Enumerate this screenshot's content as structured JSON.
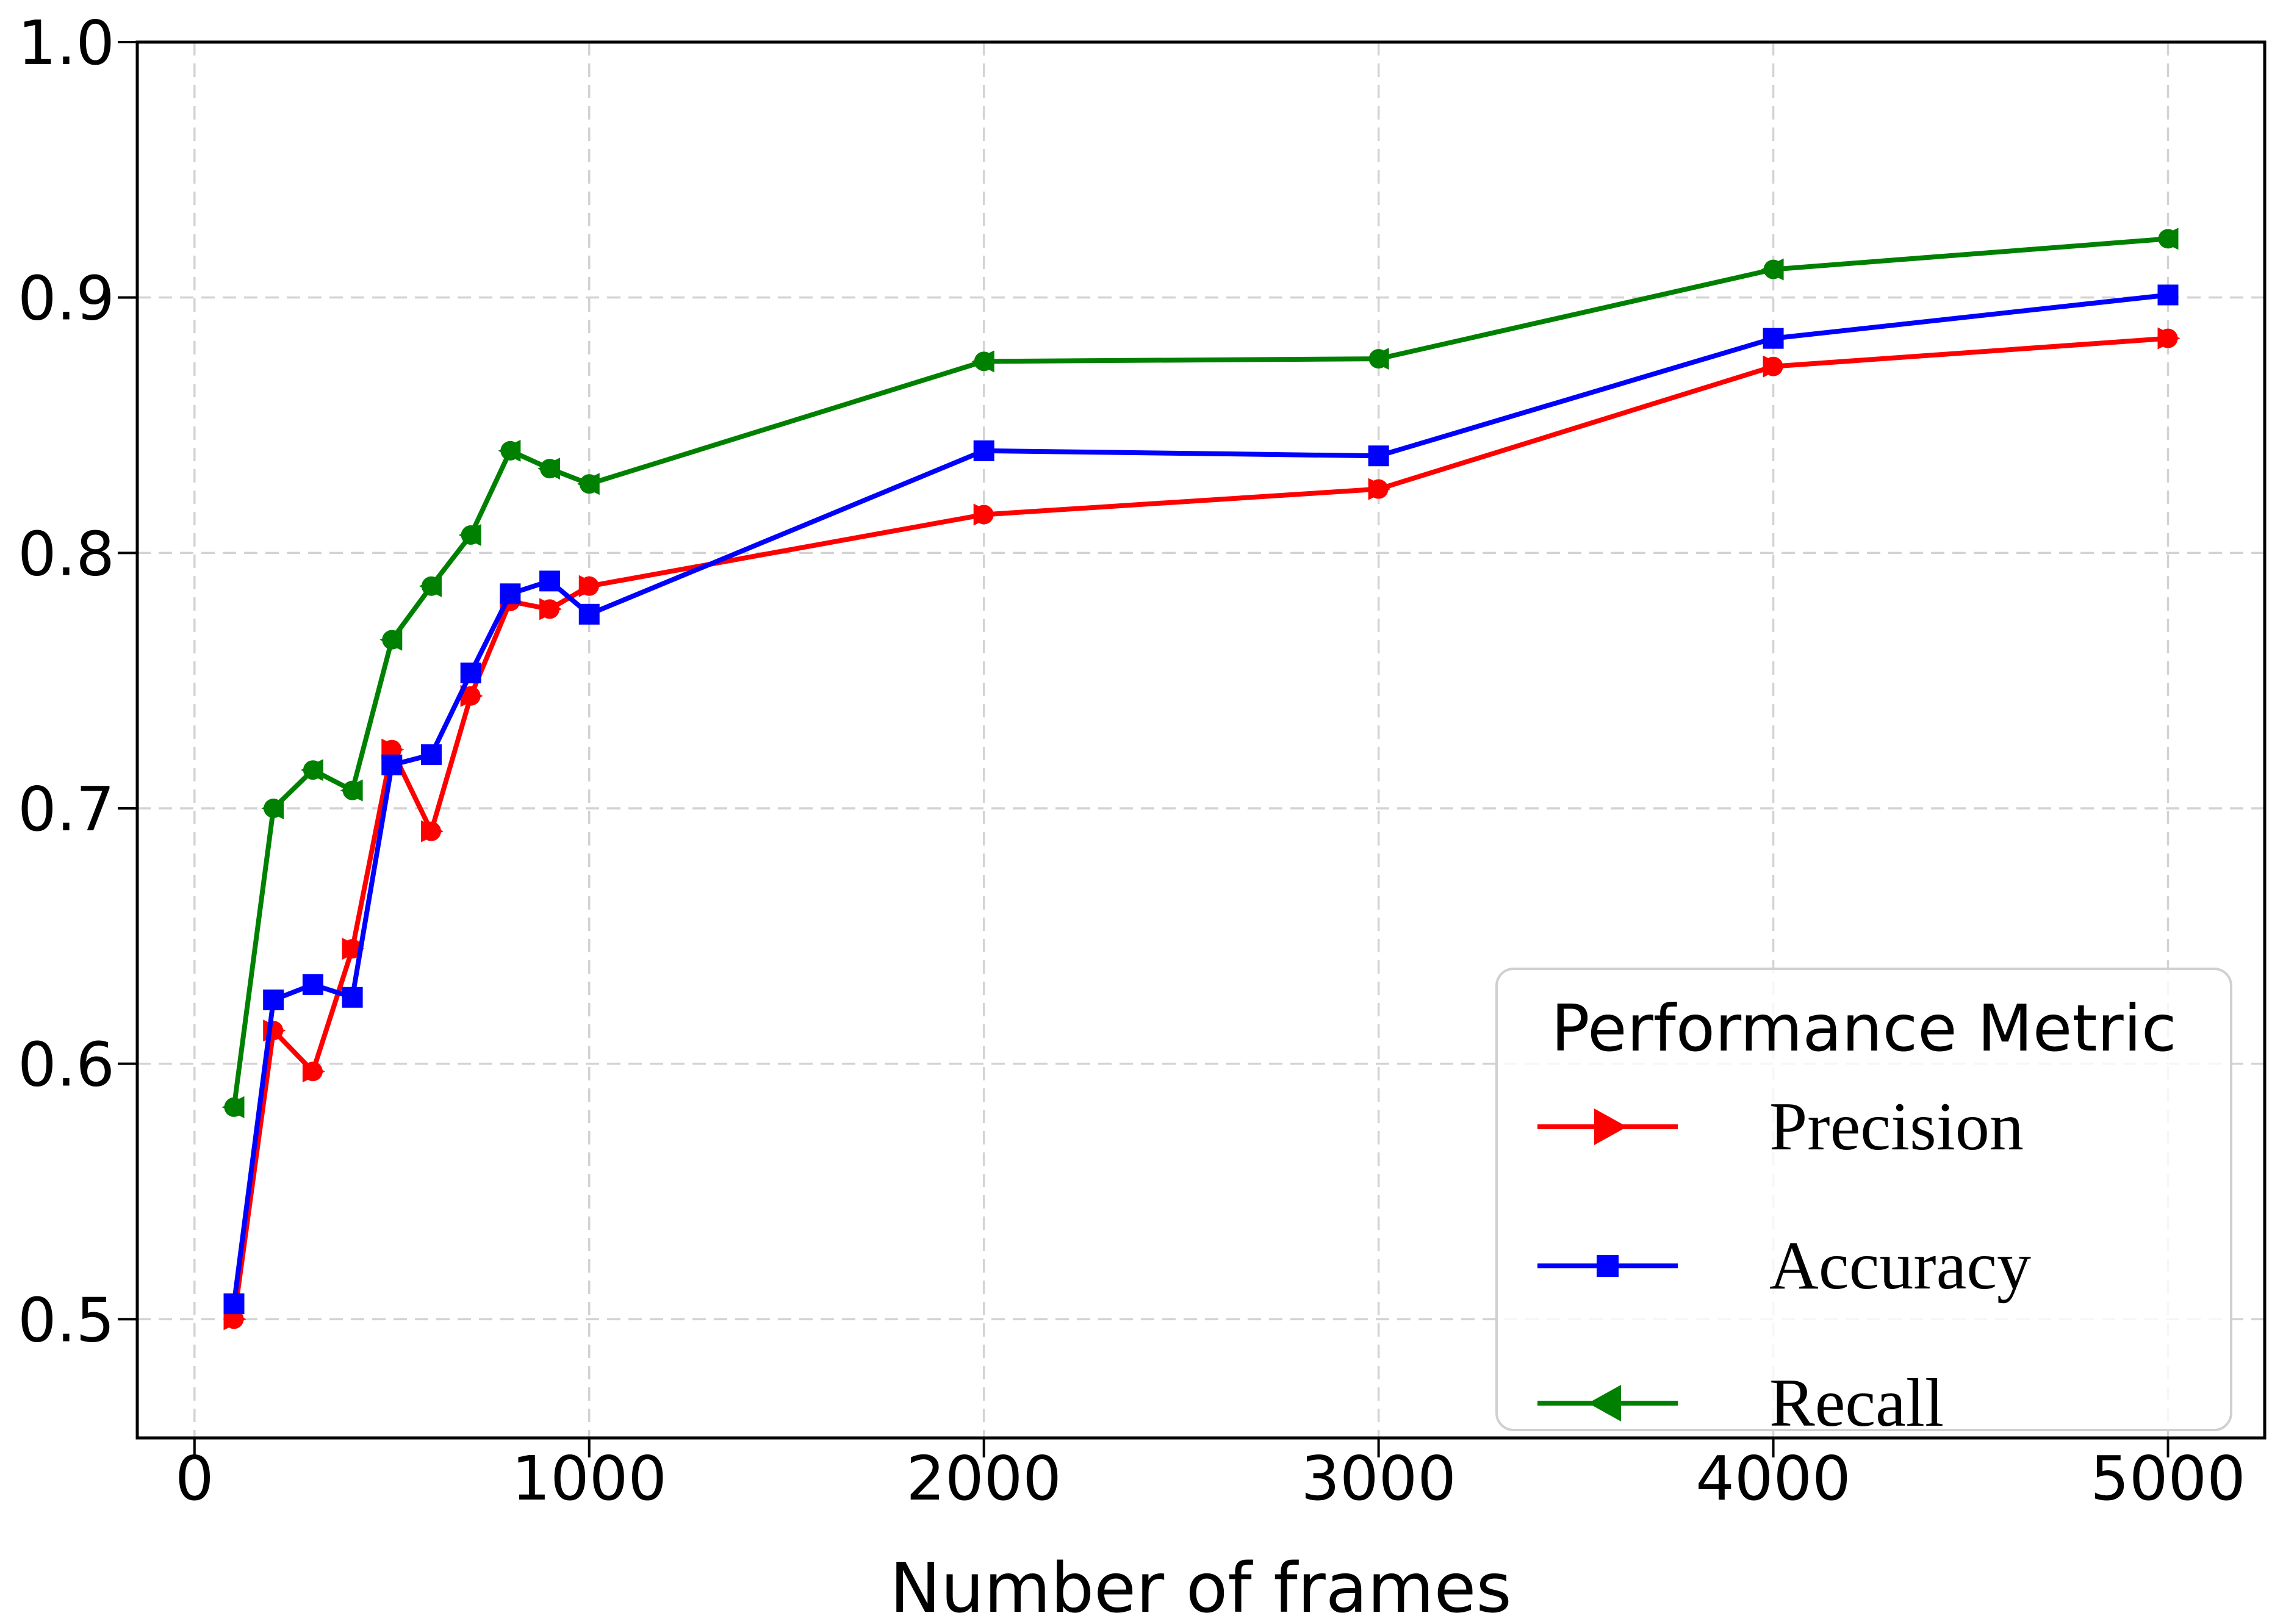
{
  "chart_data": {
    "type": "line",
    "title": "",
    "xlabel": "Number of frames",
    "ylabel": "",
    "x": [
      100,
      200,
      300,
      400,
      500,
      600,
      700,
      800,
      900,
      1000,
      2000,
      3000,
      4000,
      5000
    ],
    "series": [
      {
        "name": "Precision",
        "color": "#ff0000",
        "marker": "circle-triangle-right",
        "values": [
          0.5,
          0.613,
          0.597,
          0.645,
          0.723,
          0.691,
          0.744,
          0.781,
          0.778,
          0.787,
          0.815,
          0.825,
          0.873,
          0.884
        ]
      },
      {
        "name": "Accuracy",
        "color": "#0000ff",
        "marker": "square",
        "values": [
          0.506,
          0.625,
          0.631,
          0.626,
          0.717,
          0.721,
          0.753,
          0.784,
          0.789,
          0.776,
          0.84,
          0.838,
          0.884,
          0.901
        ]
      },
      {
        "name": "Recall",
        "color": "#008000",
        "marker": "circle-triangle-left",
        "values": [
          0.583,
          0.7,
          0.715,
          0.707,
          0.766,
          0.787,
          0.807,
          0.84,
          0.833,
          0.827,
          0.875,
          0.876,
          0.911,
          0.923
        ]
      }
    ],
    "xlim": [
      -145,
      5245
    ],
    "ylim": [
      0.4535,
      1.0
    ],
    "x_ticks": [
      0,
      1000,
      2000,
      3000,
      4000,
      5000
    ],
    "x_tick_labels": [
      "0",
      "1000",
      "2000",
      "3000",
      "4000",
      "5000"
    ],
    "y_ticks": [
      0.5,
      0.6,
      0.7,
      0.8,
      0.9,
      1.0
    ],
    "y_tick_labels": [
      "0.5",
      "0.6",
      "0.7",
      "0.8",
      "0.9",
      "1.0"
    ],
    "grid": true,
    "grid_color": "#d3d3d3",
    "legend": {
      "title": "Performance Metric",
      "position": "lower right"
    }
  }
}
